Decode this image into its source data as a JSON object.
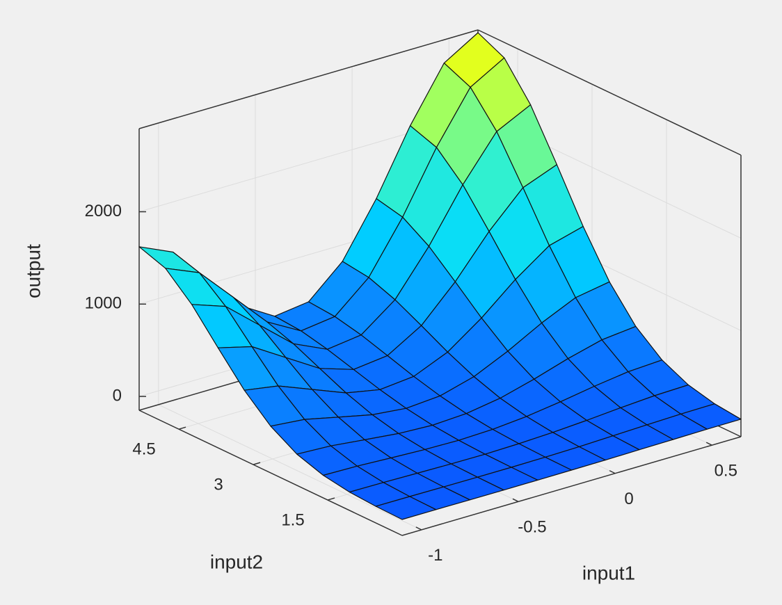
{
  "chart_data": {
    "type": "surface",
    "x_label": "input1",
    "y_label": "input2",
    "z_label": "output",
    "x": [
      -1.1,
      -0.925,
      -0.75,
      -0.575,
      -0.4,
      -0.225,
      -0.05,
      0.125,
      0.3,
      0.475,
      0.65
    ],
    "y": [
      0,
      0.53,
      1.06,
      1.59,
      2.12,
      2.65,
      3.18,
      3.71,
      4.24,
      4.77,
      5.3
    ],
    "z": [
      [
        23,
        23,
        22,
        21,
        22,
        23,
        25,
        30,
        34,
        38,
        40
      ],
      [
        30,
        29,
        26,
        25,
        25,
        28,
        34,
        45,
        57,
        67,
        71
      ],
      [
        49,
        46,
        39,
        33,
        31,
        38,
        53,
        77,
        106,
        130,
        140
      ],
      [
        95,
        87,
        69,
        53,
        46,
        58,
        90,
        142,
        203,
        254,
        274
      ],
      [
        188,
        171,
        130,
        91,
        74,
        93,
        153,
        252,
        367,
        464,
        502
      ],
      [
        356,
        322,
        239,
        159,
        121,
        149,
        251,
        419,
        618,
        785,
        849
      ],
      [
        609,
        549,
        404,
        260,
        188,
        224,
        381,
        643,
        953,
        1213,
        1314
      ],
      [
        933,
        839,
        614,
        389,
        271,
        314,
        532,
        900,
        1338,
        1705,
        1847
      ],
      [
        1267,
        1139,
        830,
        521,
        354,
        402,
        677,
        1148,
        1708,
        2178,
        2360
      ],
      [
        1523,
        1369,
        996,
        622,
        418,
        466,
        782,
        1328,
        1977,
        2522,
        2733
      ],
      [
        1621,
        1456,
        1060,
        660,
        441,
        490,
        821,
        1394,
        2076,
        2648,
        2870
      ]
    ],
    "xlim": [
      -1.1,
      0.65
    ],
    "ylim": [
      0,
      5.3
    ],
    "zlim": [
      -150,
      2900
    ],
    "xticks": [
      -1,
      -0.5,
      0,
      0.5
    ],
    "yticks": [
      1.5,
      3,
      4.5
    ],
    "zticks": [
      0,
      1000,
      2000
    ],
    "grid": true,
    "colormap": [
      "#0a5aff",
      "#0a8cff",
      "#00d8ff",
      "#30f0d0",
      "#a0ff60",
      "#ffff00"
    ]
  }
}
